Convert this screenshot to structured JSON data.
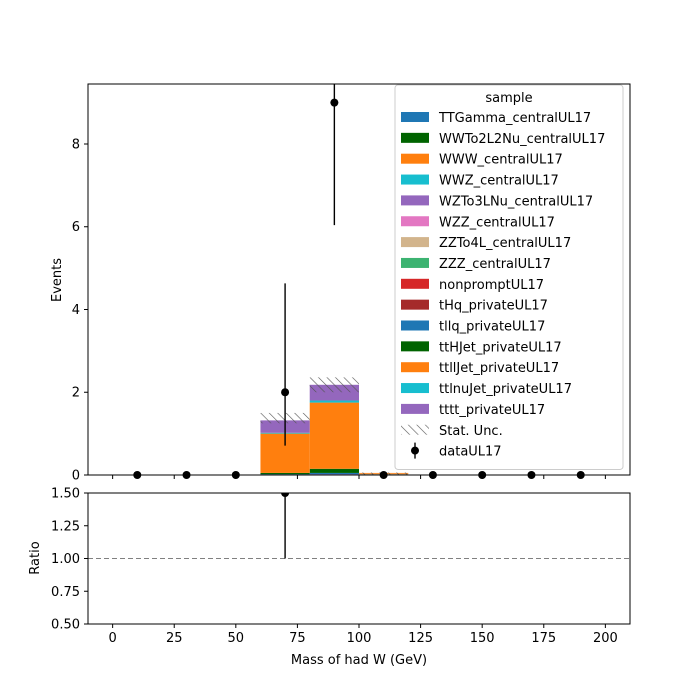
{
  "chart_data": [
    {
      "type": "bar",
      "stacked": true,
      "xlabel": "",
      "ylabel": "Events",
      "xlim": [
        -10,
        210
      ],
      "ylim": [
        0,
        9.45
      ],
      "yticks": [
        0,
        2,
        4,
        6,
        8
      ],
      "bin_edges": [
        0,
        20,
        40,
        60,
        80,
        100,
        120,
        140,
        160,
        180,
        200
      ],
      "series": [
        {
          "name": "TTGamma_centralUL17",
          "color": "#1f77b4",
          "values": [
            0,
            0,
            0,
            0,
            0,
            0,
            0,
            0,
            0,
            0
          ]
        },
        {
          "name": "WWTo2L2Nu_centralUL17",
          "color": "#006400",
          "values": [
            0,
            0,
            0,
            0,
            0,
            0,
            0,
            0,
            0,
            0
          ]
        },
        {
          "name": "WWW_centralUL17",
          "color": "#ff7f0e",
          "values": [
            0,
            0,
            0,
            0,
            0,
            0,
            0,
            0,
            0,
            0
          ]
        },
        {
          "name": "WWZ_centralUL17",
          "color": "#17becf",
          "values": [
            0,
            0,
            0,
            0,
            0.01,
            0,
            0,
            0,
            0,
            0
          ]
        },
        {
          "name": "WZTo3LNu_centralUL17",
          "color": "#9467bd",
          "values": [
            0,
            0,
            0,
            0,
            0.01,
            0,
            0,
            0,
            0,
            0
          ]
        },
        {
          "name": "WZZ_centralUL17",
          "color": "#e377c2",
          "values": [
            0,
            0,
            0,
            0,
            0,
            0,
            0,
            0,
            0,
            0
          ]
        },
        {
          "name": "ZZTo4L_centralUL17",
          "color": "#d2b48c",
          "values": [
            0,
            0,
            0,
            0,
            0,
            0.03,
            0,
            0,
            0,
            0
          ]
        },
        {
          "name": "ZZZ_centralUL17",
          "color": "#3cb371",
          "values": [
            0,
            0,
            0,
            0,
            0,
            0,
            0,
            0,
            0,
            0
          ]
        },
        {
          "name": "nonpromptUL17",
          "color": "#d62728",
          "values": [
            0,
            0,
            0,
            0,
            0,
            0,
            0,
            0,
            0,
            0
          ]
        },
        {
          "name": "tHq_privateUL17",
          "color": "#a52a2a",
          "values": [
            0,
            0,
            0,
            0,
            0,
            0,
            0,
            0,
            0,
            0
          ]
        },
        {
          "name": "tllq_privateUL17",
          "color": "#1f77b4",
          "values": [
            0,
            0,
            0,
            0.02,
            0.03,
            0,
            0,
            0,
            0,
            0
          ]
        },
        {
          "name": "ttHJet_privateUL17",
          "color": "#006400",
          "values": [
            0,
            0,
            0,
            0.03,
            0.1,
            0,
            0,
            0,
            0,
            0
          ]
        },
        {
          "name": "ttllJet_privateUL17",
          "color": "#ff7f0e",
          "values": [
            0,
            0,
            0,
            0.95,
            1.6,
            0.02,
            0,
            0,
            0,
            0
          ]
        },
        {
          "name": "ttlnuJet_privateUL17",
          "color": "#17becf",
          "values": [
            0,
            0,
            0,
            0.02,
            0.05,
            0,
            0,
            0,
            0,
            0
          ]
        },
        {
          "name": "tttt_privateUL17",
          "color": "#9467bd",
          "values": [
            0,
            0,
            0,
            0.3,
            0.38,
            0,
            0,
            0,
            0,
            0
          ]
        }
      ],
      "stat_unc": {
        "name": "Stat. Unc.",
        "up": [
          0,
          0,
          0,
          1.5,
          2.36,
          0.06,
          0,
          0,
          0,
          0
        ],
        "down": [
          0,
          0,
          0,
          1.25,
          2.0,
          0.0,
          0,
          0,
          0,
          0
        ]
      },
      "data": {
        "name": "dataUL17",
        "x": [
          10,
          30,
          50,
          70,
          90,
          110,
          130,
          150,
          170,
          190
        ],
        "y": [
          0,
          0,
          0,
          2,
          9,
          0,
          0,
          0,
          0,
          0
        ],
        "err_up": [
          0,
          0,
          0,
          2.63,
          3.8,
          0,
          0,
          0,
          0,
          0
        ],
        "err_down": [
          0,
          0,
          0,
          1.29,
          2.96,
          0,
          0,
          0,
          0,
          0
        ]
      },
      "legend": {
        "title": "sample",
        "placement": "top-right"
      }
    },
    {
      "type": "scatter",
      "xlabel": "Mass of had W (GeV)",
      "ylabel": "Ratio",
      "xlim": [
        -10,
        210
      ],
      "ylim": [
        0.5,
        1.5
      ],
      "xticks": [
        0,
        25,
        50,
        75,
        100,
        125,
        150,
        175,
        200
      ],
      "yticks": [
        0.5,
        0.75,
        1.0,
        1.25,
        1.5
      ],
      "ytick_labels": [
        "0.50",
        "0.75",
        "1.00",
        "1.25",
        "1.50"
      ],
      "reference_line": 1.0,
      "points": [
        {
          "x": 70,
          "y": 1.5,
          "err_low": 0.5,
          "err_high": 0.5
        }
      ]
    }
  ]
}
